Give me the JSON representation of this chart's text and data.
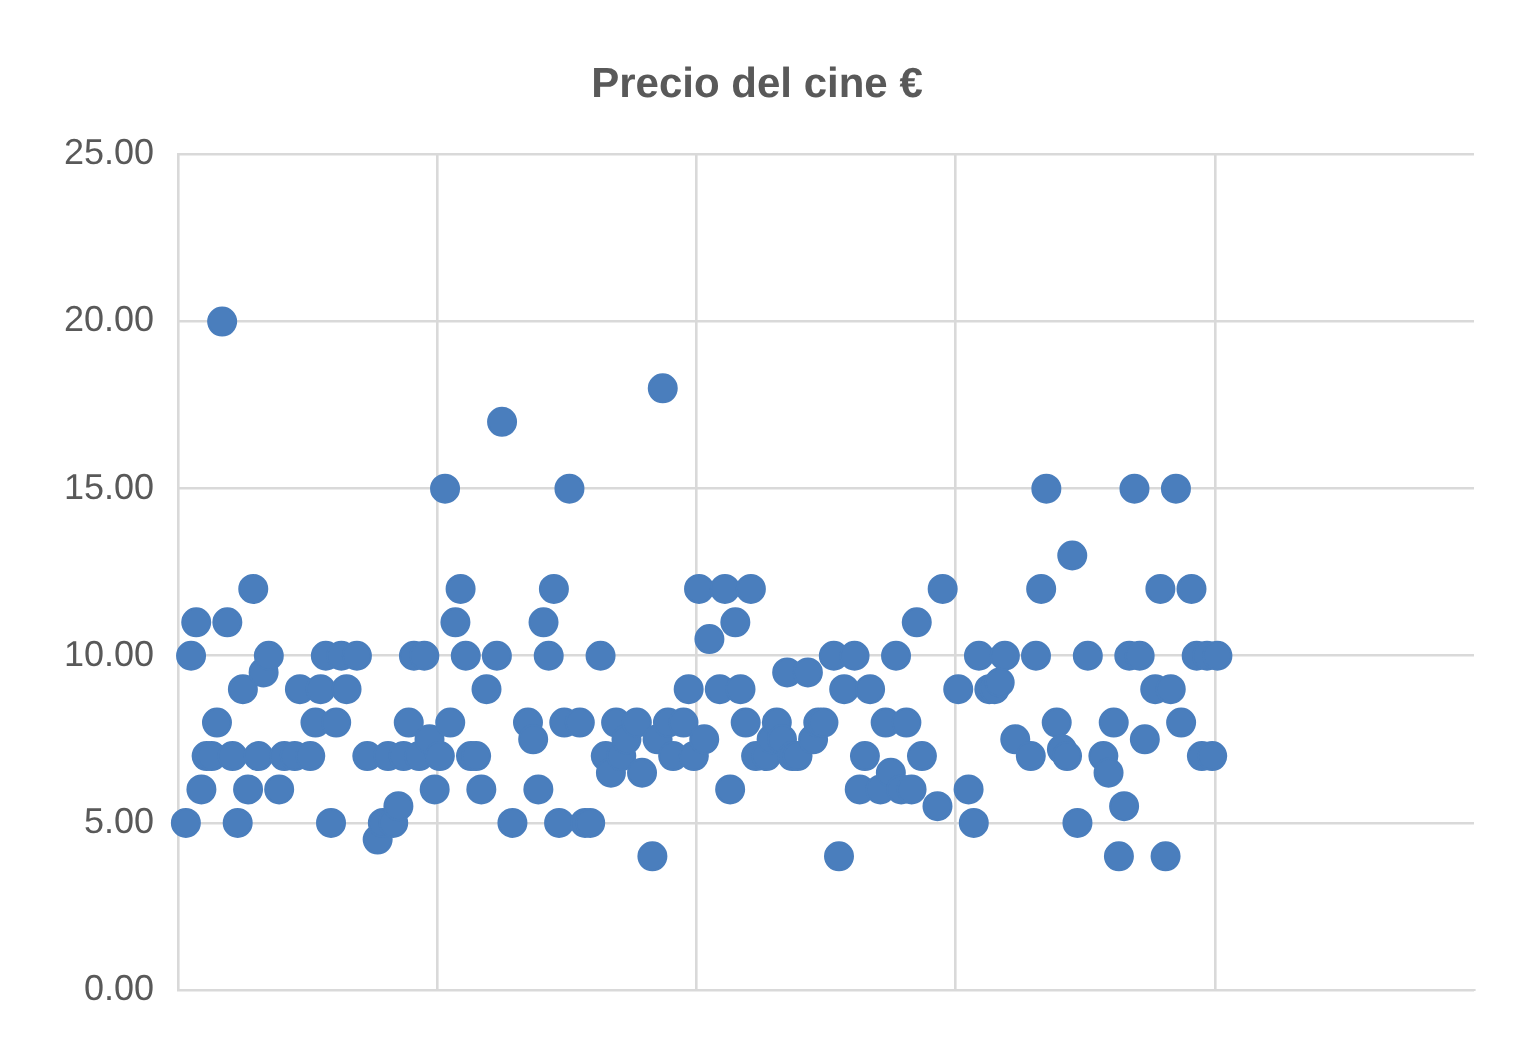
{
  "chart_data": {
    "type": "scatter",
    "title": "Precio del cine €",
    "categories": [
      null,
      null,
      null,
      null,
      null,
      null,
      null,
      null,
      null,
      null,
      null,
      null,
      null,
      null,
      null,
      null,
      null,
      null,
      null,
      null,
      null,
      null,
      null,
      null,
      null,
      null,
      null,
      null,
      null,
      null,
      null,
      null,
      null,
      null,
      null,
      null,
      null,
      null,
      null,
      null,
      null,
      null,
      null,
      null,
      null,
      null,
      null,
      null,
      null,
      null,
      null,
      null,
      null,
      null,
      null,
      null,
      null,
      null,
      null,
      null,
      null,
      null,
      null,
      null,
      null,
      null,
      null,
      null,
      null,
      null,
      null,
      null,
      null,
      null,
      null,
      null,
      null,
      null,
      null,
      null,
      null,
      null,
      null,
      null,
      null,
      null,
      null,
      null,
      null,
      null,
      null,
      null,
      null,
      null,
      null,
      null,
      null,
      null,
      null,
      null,
      null,
      null,
      null,
      null,
      null,
      null,
      null,
      null,
      null,
      null,
      null,
      null,
      null,
      null,
      null,
      null,
      null,
      null,
      null,
      null,
      null,
      null,
      null,
      null,
      null,
      null,
      null,
      null,
      null,
      null,
      null,
      null,
      null,
      null,
      null,
      null,
      null,
      null,
      null,
      null,
      null,
      null,
      null,
      null,
      null,
      null,
      null,
      null,
      null,
      null,
      null,
      null,
      null,
      null,
      null,
      null,
      null,
      null,
      null,
      null,
      null,
      null,
      null,
      null,
      null,
      null,
      null,
      null,
      null,
      null,
      null,
      null,
      null,
      null,
      null,
      null,
      null,
      null,
      null,
      null,
      null,
      null,
      null,
      null,
      null,
      null,
      null,
      null,
      null,
      null,
      null,
      null,
      null,
      null,
      null,
      null,
      null,
      null,
      null,
      null,
      null,
      null,
      null,
      null,
      null,
      null,
      null,
      null,
      null,
      null,
      null,
      null,
      null,
      null,
      null,
      null,
      null,
      null,
      null,
      null,
      null,
      null,
      null,
      null,
      null,
      null,
      null,
      null,
      null,
      null,
      null,
      null,
      null,
      null,
      null,
      null,
      null,
      null,
      null,
      null,
      null,
      null,
      null,
      null,
      null,
      null,
      null,
      null,
      null,
      null
    ],
    "ylim": [
      0,
      25
    ],
    "yticks": [
      {
        "value": 0,
        "label": "0.00"
      },
      {
        "value": 5,
        "label": "5.00"
      },
      {
        "value": 10,
        "label": "10.00"
      },
      {
        "value": 15,
        "label": "15.00"
      },
      {
        "value": 20,
        "label": "20.00"
      },
      {
        "value": 25,
        "label": "25.00"
      }
    ],
    "tick_labels": "y",
    "grid": true,
    "marker": "circle",
    "series": [
      {
        "color": "#4a7ebd",
        "values": [
          null,
          5,
          10,
          11,
          6,
          7,
          7,
          8,
          20,
          11,
          7,
          5,
          9,
          6,
          12,
          7,
          9.5,
          10,
          null,
          6,
          7,
          null,
          7,
          9,
          null,
          7,
          8,
          9,
          10,
          5,
          8,
          10,
          9,
          null,
          10,
          null,
          7,
          null,
          4.5,
          5,
          7,
          5,
          5.5,
          7,
          8,
          10,
          7,
          10,
          7.5,
          6,
          7,
          15,
          8,
          11,
          12,
          10,
          7,
          7,
          6,
          9,
          null,
          10,
          17,
          null,
          5,
          null,
          null,
          8,
          7.5,
          6,
          11,
          10,
          12,
          5,
          8,
          15,
          null,
          8,
          5,
          5,
          null,
          10,
          7,
          6.5,
          8,
          7,
          7.5,
          null,
          8,
          6.5,
          null,
          4,
          7.5,
          18,
          8,
          7,
          null,
          8,
          9,
          7,
          12,
          7.5,
          10.5,
          null,
          9,
          12,
          6,
          11,
          9,
          8,
          12,
          7,
          null,
          7,
          7.5,
          8,
          7.5,
          9.5,
          7,
          7,
          null,
          9.5,
          7.5,
          8,
          8,
          null,
          10,
          4,
          9,
          null,
          10,
          6,
          7,
          9,
          null,
          6,
          8,
          6.5,
          10,
          6,
          8,
          6,
          11,
          7,
          null,
          null,
          5.5,
          12,
          null,
          null,
          9,
          null,
          6,
          5,
          10,
          null,
          9,
          9,
          9.2,
          10,
          null,
          7.5,
          null,
          null,
          7,
          10,
          12,
          15,
          null,
          8,
          7.2,
          7,
          13,
          5,
          null,
          10,
          null,
          null,
          7,
          6.5,
          8,
          4,
          5.5,
          10,
          15,
          10,
          7.5,
          null,
          9,
          12,
          4,
          9,
          15,
          8,
          null,
          12,
          10,
          7,
          10,
          7,
          10,
          null,
          null,
          null,
          null,
          null,
          null,
          null,
          null,
          null,
          null,
          null,
          null,
          null,
          null,
          null,
          null,
          null,
          null,
          null,
          null,
          null,
          null,
          null,
          null,
          null,
          null,
          null,
          null,
          null,
          null,
          null,
          null,
          null,
          null,
          null,
          null,
          null,
          null,
          null,
          null,
          null,
          null,
          null,
          null,
          null,
          null,
          null,
          null,
          null
        ]
      }
    ]
  }
}
